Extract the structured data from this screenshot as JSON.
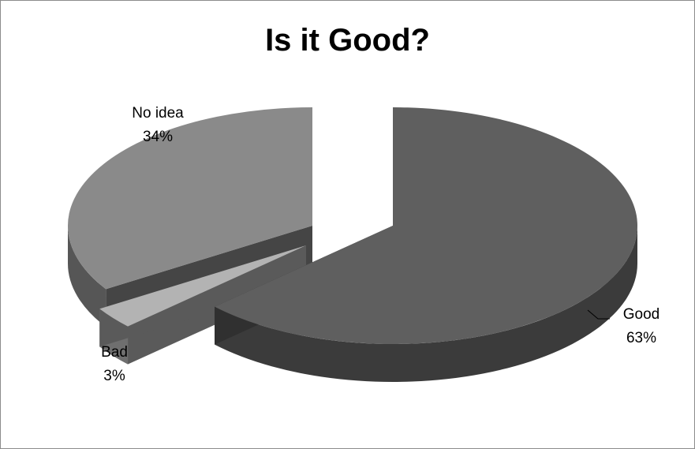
{
  "chart_data": {
    "type": "pie",
    "title": "Is it Good?",
    "three_d": true,
    "exploded": true,
    "legend": "none",
    "slices": [
      {
        "name": "Good",
        "value": 63,
        "label": "63%",
        "color": "#5f5f5f"
      },
      {
        "name": "Bad",
        "value": 3,
        "label": "3%",
        "color": "#b3b3b3"
      },
      {
        "name": "No idea",
        "value": 34,
        "label": "34%",
        "color": "#8a8a8a"
      }
    ]
  }
}
